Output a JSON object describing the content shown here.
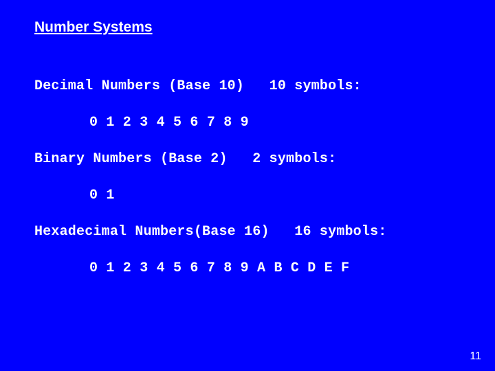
{
  "slide": {
    "title": "Number Systems",
    "background_color": "#0000ff",
    "text_color": "#ffffff",
    "title_font": "Arial",
    "body_font": "Courier New",
    "lines": {
      "decimal_heading": "Decimal Numbers (Base 10)   10 symbols:",
      "decimal_symbols": "0 1 2 3 4 5 6 7 8 9",
      "binary_heading": "Binary Numbers (Base 2)   2 symbols:",
      "binary_symbols": "0 1",
      "hex_heading": "Hexadecimal Numbers(Base 16)   16 symbols:",
      "hex_symbols": "0 1 2 3 4 5 6 7 8 9 A B C D E F"
    },
    "page_number": "11"
  }
}
